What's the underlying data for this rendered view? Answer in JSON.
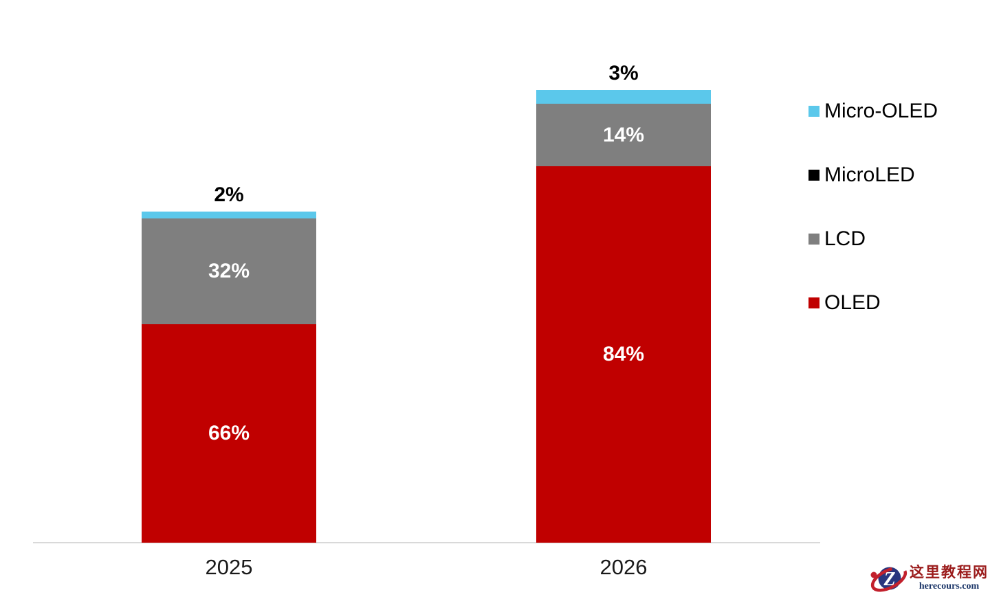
{
  "chart_data": {
    "type": "bar",
    "variant": "stacked-column",
    "title": "",
    "categories": [
      "2025",
      "2026"
    ],
    "series": [
      {
        "name": "OLED",
        "color": "#c00000",
        "values": [
          66,
          84
        ],
        "labels": [
          "66%",
          "84%"
        ],
        "label_position": "inside",
        "label_color": "#ffffff"
      },
      {
        "name": "LCD",
        "color": "#7f7f7f",
        "values": [
          32,
          14
        ],
        "labels": [
          "32%",
          "14%"
        ],
        "label_position": "inside",
        "label_color": "#ffffff"
      },
      {
        "name": "MicroLED",
        "color": "#000000",
        "values": [
          0,
          0
        ],
        "labels": [
          "",
          ""
        ],
        "label_position": "inside",
        "label_color": "#ffffff"
      },
      {
        "name": "Micro-OLED",
        "color": "#5bc8eb",
        "values": [
          2,
          3
        ],
        "labels": [
          "2%",
          "3%"
        ],
        "label_position": "above",
        "label_color": "#000000"
      }
    ],
    "unit": "%",
    "x_axis_labels": [
      "2025",
      "2026"
    ],
    "legend_position": "right",
    "grid": false,
    "baseline_color": "#d9d9d9"
  },
  "legend": {
    "items": [
      {
        "label": "Micro-OLED",
        "color": "#5bc8eb"
      },
      {
        "label": "MicroLED",
        "color": "#000000"
      },
      {
        "label": "LCD",
        "color": "#7f7f7f"
      },
      {
        "label": "OLED",
        "color": "#c00000"
      }
    ]
  },
  "watermark": {
    "site_name": "这里教程网",
    "site_url": "herecours.com",
    "logo_letter": "Z"
  }
}
